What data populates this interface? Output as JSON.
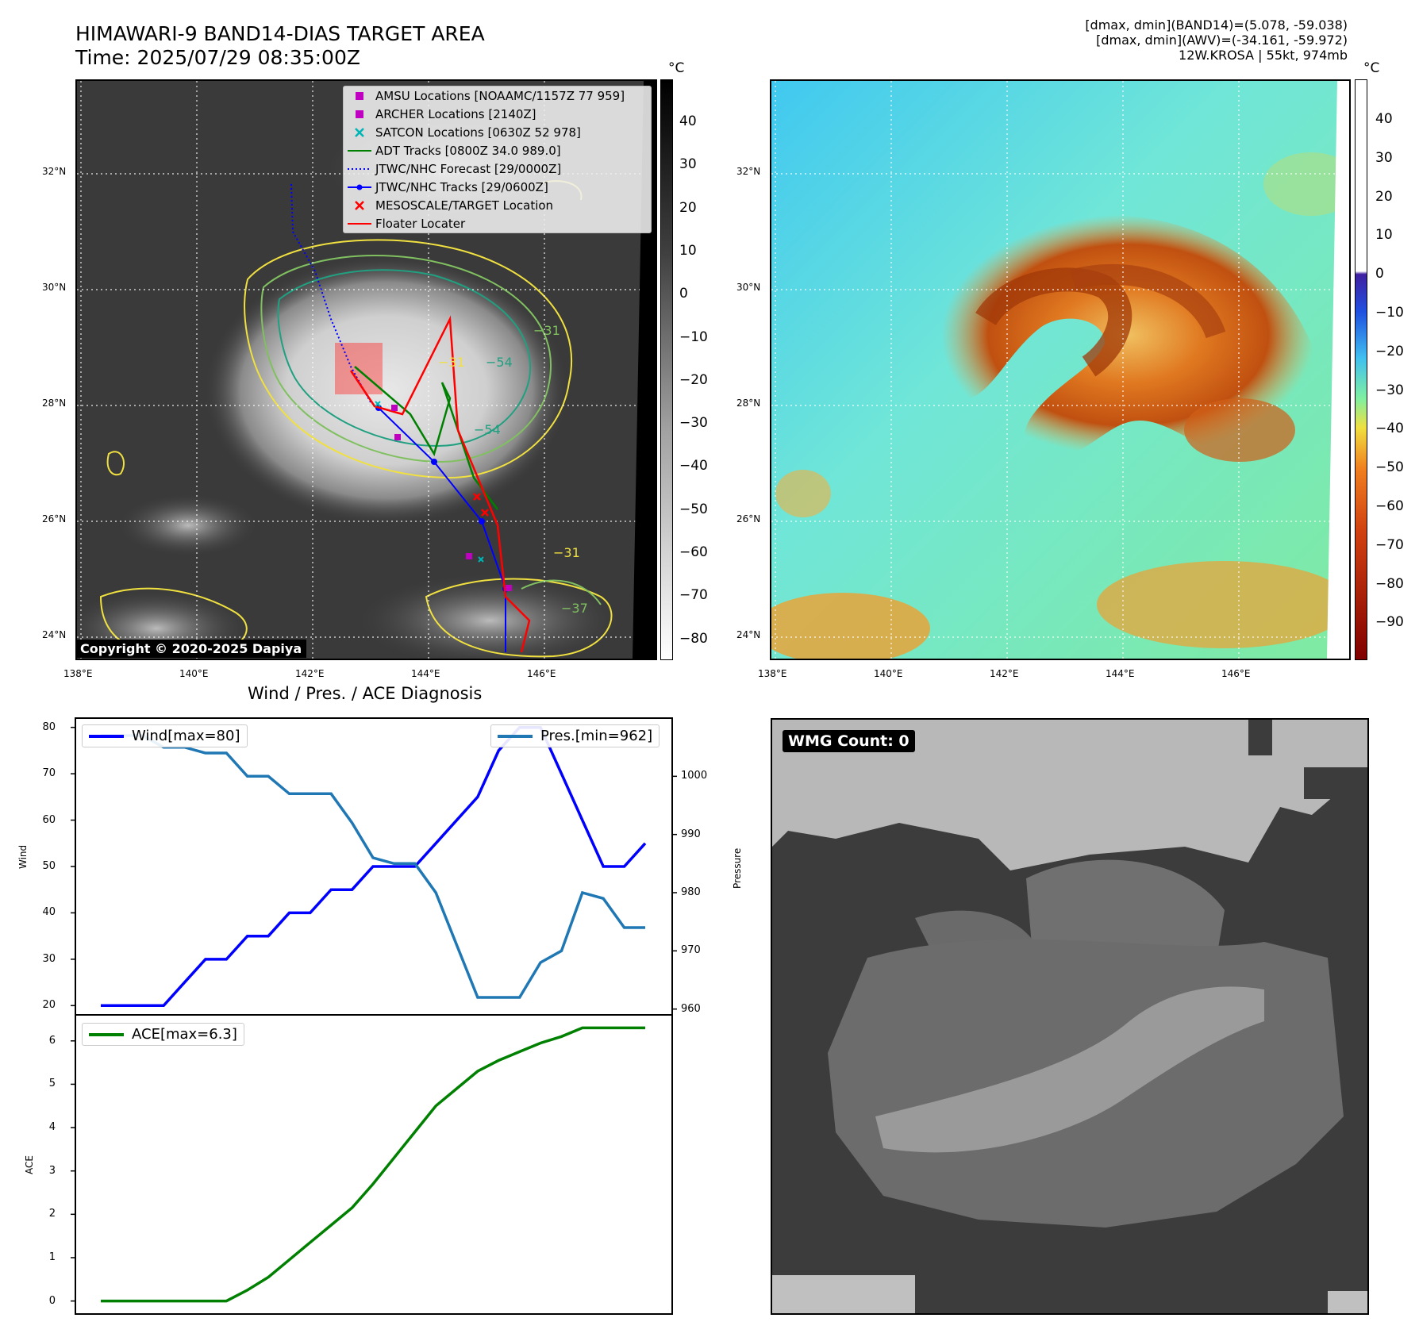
{
  "header": {
    "title_line1": "HIMAWARI-9 BAND14-DIAS TARGET AREA",
    "title_line2": "Time: 2025/07/29 08:35:00Z",
    "right_line1": "[dmax, dmin](BAND14)=(5.078, -59.038)",
    "right_line2": "[dmax, dmin](AWV)=(-34.161, -59.972)",
    "right_line3": "12W.KROSA | 55kt, 974mb"
  },
  "map_axes": {
    "lon_ticks": [
      "138°E",
      "140°E",
      "142°E",
      "144°E",
      "146°E"
    ],
    "lat_ticks": [
      "32°N",
      "30°N",
      "28°N",
      "26°N",
      "24°N"
    ]
  },
  "ir_panel": {
    "colorbar_unit": "°C",
    "colorbar_ticks": [
      "40",
      "30",
      "20",
      "10",
      "0",
      "−10",
      "−20",
      "−30",
      "−40",
      "−50",
      "−60",
      "−70",
      "−80"
    ],
    "contour_labels": [
      "−31",
      "−31",
      "−54",
      "−54",
      "−31",
      "−37"
    ],
    "copyright": "Copyright © 2020-2025 Dapiya",
    "legend": [
      {
        "label": "AMSU Locations [NOAAMC/1157Z 77 959]",
        "symbol": "square",
        "color": "#c000c0"
      },
      {
        "label": "ARCHER Locations [2140Z]",
        "symbol": "square",
        "color": "#c000c0"
      },
      {
        "label": "SATCON Locations [0630Z 52 978]",
        "symbol": "x",
        "color": "#00b5b5"
      },
      {
        "label": "ADT Tracks [0800Z 34.0 989.0]",
        "symbol": "line",
        "color": "#008000"
      },
      {
        "label": "JTWC/NHC Forecast [29/0000Z]",
        "symbol": "dotted",
        "color": "#0000ff"
      },
      {
        "label": "JTWC/NHC Tracks [29/0600Z]",
        "symbol": "line-dot",
        "color": "#0000ff"
      },
      {
        "label": "MESOSCALE/TARGET Location",
        "symbol": "x",
        "color": "#ff0000"
      },
      {
        "label": "Floater Locater",
        "symbol": "line",
        "color": "#ff0000"
      }
    ]
  },
  "awv_panel": {
    "colorbar_unit": "°C",
    "colorbar_ticks": [
      "40",
      "30",
      "20",
      "10",
      "0",
      "−10",
      "−20",
      "−30",
      "−40",
      "−50",
      "−60",
      "−70",
      "−80",
      "−90"
    ]
  },
  "wmg_panel": {
    "label": "WMG Count: 0"
  },
  "chart_data": {
    "title": "Wind / Pres. / ACE Diagnosis",
    "type": "line",
    "x": [
      0,
      1,
      2,
      3,
      4,
      5,
      6,
      7,
      8,
      9,
      10,
      11,
      12,
      13,
      14,
      15,
      16,
      17,
      18,
      19,
      20,
      21,
      22,
      23,
      24,
      25,
      26
    ],
    "series": [
      {
        "name": "Wind[max=80]",
        "axis": "Wind",
        "color": "#0000ff",
        "values": [
          20,
          20,
          20,
          20,
          25,
          30,
          30,
          35,
          35,
          40,
          40,
          45,
          45,
          50,
          50,
          50,
          55,
          60,
          65,
          75,
          80,
          80,
          70,
          60,
          50,
          50,
          55
        ]
      },
      {
        "name": "Pres.[min=962]",
        "axis": "Pressure",
        "color": "#1f77b4",
        "values": [
          1007,
          1007,
          1007,
          1005,
          1005,
          1004,
          1004,
          1000,
          1000,
          997,
          997,
          997,
          992,
          986,
          985,
          985,
          980,
          971,
          962,
          962,
          962,
          968,
          970,
          980,
          979,
          974,
          974
        ]
      },
      {
        "name": "ACE[max=6.3]",
        "axis": "ACE",
        "color": "#008000",
        "values": [
          0,
          0,
          0,
          0,
          0,
          0,
          0,
          0.25,
          0.55,
          0.95,
          1.35,
          1.75,
          2.15,
          2.7,
          3.3,
          3.9,
          4.5,
          4.9,
          5.3,
          5.55,
          5.75,
          5.95,
          6.1,
          6.3,
          6.3,
          6.3,
          6.3
        ]
      }
    ],
    "wind_axis": {
      "label": "Wind",
      "ticks": [
        "80",
        "70",
        "60",
        "50",
        "40",
        "30",
        "20"
      ],
      "ylim": [
        18,
        82
      ]
    },
    "pressure_axis": {
      "label": "Pressure",
      "ticks": [
        "1000",
        "990",
        "980",
        "970",
        "960"
      ],
      "ylim": [
        959,
        1010
      ]
    },
    "ace_axis": {
      "label": "ACE",
      "ticks": [
        "6",
        "5",
        "4",
        "3",
        "2",
        "1",
        "0"
      ],
      "ylim": [
        -0.3,
        6.6
      ]
    }
  }
}
